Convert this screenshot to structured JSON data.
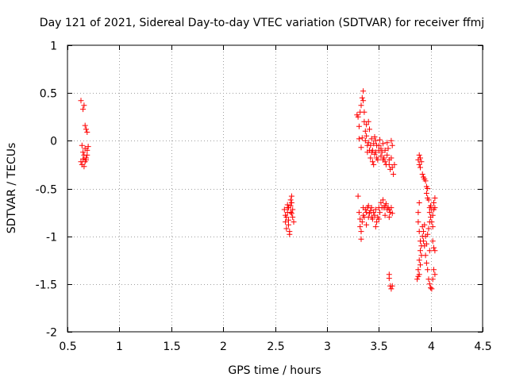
{
  "chart_data": {
    "type": "scatter",
    "title": "Day 121 of 2021, Sidereal Day-to-day VTEC variation (SDTVAR) for receiver ffmj",
    "xlabel": "GPS time / hours",
    "ylabel": "SDTVAR / TECUs",
    "xlim": [
      0.5,
      4.5
    ],
    "ylim": [
      -2,
      1
    ],
    "xticks": [
      0.5,
      1,
      1.5,
      2,
      2.5,
      3,
      3.5,
      4,
      4.5
    ],
    "yticks": [
      -2,
      -1.5,
      -1,
      -0.5,
      0,
      0.5,
      1
    ],
    "xtick_labels": [
      "0.5",
      "1",
      "1.5",
      "2",
      "2.5",
      "3",
      "3.5",
      "4",
      "4.5"
    ],
    "ytick_labels": [
      "-2",
      "-1.5",
      "-1",
      "-0.5",
      "0",
      "0.5",
      "1"
    ],
    "grid": true,
    "marker": "+",
    "color": "#ff0000",
    "series": [
      {
        "name": "SDTVAR",
        "points": [
          [
            0.63,
            0.42
          ],
          [
            0.65,
            0.33
          ],
          [
            0.66,
            0.37
          ],
          [
            0.67,
            0.16
          ],
          [
            0.68,
            0.12
          ],
          [
            0.69,
            0.09
          ],
          [
            0.64,
            -0.05
          ],
          [
            0.65,
            -0.12
          ],
          [
            0.66,
            -0.15
          ],
          [
            0.67,
            -0.08
          ],
          [
            0.68,
            -0.18
          ],
          [
            0.69,
            -0.1
          ],
          [
            0.63,
            -0.22
          ],
          [
            0.64,
            -0.25
          ],
          [
            0.66,
            -0.27
          ],
          [
            0.67,
            -0.22
          ],
          [
            0.68,
            -0.2
          ],
          [
            0.69,
            -0.15
          ],
          [
            0.7,
            -0.06
          ],
          [
            0.65,
            -0.19
          ],
          [
            2.59,
            -0.72
          ],
          [
            2.6,
            -0.78
          ],
          [
            2.6,
            -0.85
          ],
          [
            2.61,
            -0.8
          ],
          [
            2.61,
            -0.92
          ],
          [
            2.62,
            -0.7
          ],
          [
            2.62,
            -0.75
          ],
          [
            2.63,
            -0.88
          ],
          [
            2.63,
            -0.83
          ],
          [
            2.64,
            -0.95
          ],
          [
            2.64,
            -0.98
          ],
          [
            2.65,
            -0.62
          ],
          [
            2.65,
            -0.68
          ],
          [
            2.66,
            -0.58
          ],
          [
            2.66,
            -0.65
          ],
          [
            2.67,
            -0.72
          ],
          [
            2.67,
            -0.8
          ],
          [
            2.68,
            -0.85
          ],
          [
            2.62,
            -0.67
          ],
          [
            2.65,
            -0.75
          ],
          [
            2.63,
            -0.7
          ],
          [
            2.66,
            -0.76
          ],
          [
            3.29,
            0.27
          ],
          [
            3.3,
            0.25
          ],
          [
            3.31,
            0.15
          ],
          [
            3.32,
            0.3
          ],
          [
            3.33,
            0.37
          ],
          [
            3.34,
            0.45
          ],
          [
            3.35,
            0.52
          ],
          [
            3.35,
            0.42
          ],
          [
            3.36,
            0.3
          ],
          [
            3.36,
            0.2
          ],
          [
            3.37,
            0.1
          ],
          [
            3.37,
            0.0
          ],
          [
            3.38,
            0.17
          ],
          [
            3.38,
            0.05
          ],
          [
            3.39,
            -0.05
          ],
          [
            3.39,
            -0.12
          ],
          [
            3.4,
            0.2
          ],
          [
            3.4,
            -0.02
          ],
          [
            3.41,
            -0.1
          ],
          [
            3.42,
            -0.05
          ],
          [
            3.42,
            -0.18
          ],
          [
            3.43,
            -0.12
          ],
          [
            3.44,
            -0.22
          ],
          [
            3.44,
            -0.1
          ],
          [
            3.45,
            -0.25
          ],
          [
            3.45,
            -0.03
          ],
          [
            3.46,
            -0.14
          ],
          [
            3.46,
            0.04
          ],
          [
            3.47,
            0.0
          ],
          [
            3.48,
            -0.05
          ],
          [
            3.48,
            -0.18
          ],
          [
            3.49,
            -0.2
          ],
          [
            3.5,
            -0.1
          ],
          [
            3.5,
            -0.05
          ],
          [
            3.51,
            0.01
          ],
          [
            3.52,
            -0.08
          ],
          [
            3.52,
            -0.16
          ],
          [
            3.53,
            -0.12
          ],
          [
            3.54,
            -0.2
          ],
          [
            3.54,
            -0.03
          ],
          [
            3.55,
            -0.18
          ],
          [
            3.56,
            -0.1
          ],
          [
            3.56,
            -0.22
          ],
          [
            3.57,
            -0.25
          ],
          [
            3.58,
            -0.15
          ],
          [
            3.58,
            -0.02
          ],
          [
            3.59,
            -0.08
          ],
          [
            3.6,
            -0.2
          ],
          [
            3.6,
            -0.25
          ],
          [
            3.61,
            -0.3
          ],
          [
            3.62,
            -0.18
          ],
          [
            3.62,
            0.0
          ],
          [
            3.63,
            -0.05
          ],
          [
            3.63,
            -0.28
          ],
          [
            3.64,
            -0.35
          ],
          [
            3.65,
            -0.25
          ],
          [
            3.31,
            0.02
          ],
          [
            3.33,
            -0.07
          ],
          [
            3.34,
            0.03
          ],
          [
            3.41,
            0.12
          ],
          [
            3.43,
            0.02
          ],
          [
            3.47,
            -0.12
          ],
          [
            3.3,
            -0.58
          ],
          [
            3.31,
            -0.75
          ],
          [
            3.32,
            -0.82
          ],
          [
            3.32,
            -0.9
          ],
          [
            3.33,
            -0.95
          ],
          [
            3.33,
            -1.03
          ],
          [
            3.34,
            -0.85
          ],
          [
            3.35,
            -0.78
          ],
          [
            3.35,
            -0.7
          ],
          [
            3.36,
            -0.8
          ],
          [
            3.37,
            -0.72
          ],
          [
            3.38,
            -0.75
          ],
          [
            3.38,
            -0.88
          ],
          [
            3.39,
            -0.7
          ],
          [
            3.4,
            -0.8
          ],
          [
            3.4,
            -0.68
          ],
          [
            3.41,
            -0.76
          ],
          [
            3.42,
            -0.73
          ],
          [
            3.43,
            -0.8
          ],
          [
            3.43,
            -0.7
          ],
          [
            3.44,
            -0.82
          ],
          [
            3.45,
            -0.75
          ],
          [
            3.46,
            -0.78
          ],
          [
            3.47,
            -0.72
          ],
          [
            3.48,
            -0.85
          ],
          [
            3.49,
            -0.8
          ],
          [
            3.5,
            -0.7
          ],
          [
            3.51,
            -0.75
          ],
          [
            3.52,
            -0.65
          ],
          [
            3.53,
            -0.7
          ],
          [
            3.54,
            -0.62
          ],
          [
            3.55,
            -0.7
          ],
          [
            3.56,
            -0.78
          ],
          [
            3.57,
            -0.66
          ],
          [
            3.58,
            -0.72
          ],
          [
            3.59,
            -0.7
          ],
          [
            3.6,
            -0.8
          ],
          [
            3.6,
            -0.72
          ],
          [
            3.61,
            -0.75
          ],
          [
            3.62,
            -0.7
          ],
          [
            3.63,
            -0.76
          ],
          [
            3.47,
            -0.9
          ],
          [
            3.5,
            -0.82
          ],
          [
            3.56,
            -0.68
          ],
          [
            3.6,
            -1.4
          ],
          [
            3.6,
            -1.44
          ],
          [
            3.61,
            -1.52
          ],
          [
            3.62,
            -1.55
          ],
          [
            3.63,
            -1.52
          ],
          [
            3.88,
            -0.2
          ],
          [
            3.89,
            -0.25
          ],
          [
            3.89,
            -0.15
          ],
          [
            3.9,
            -0.28
          ],
          [
            3.9,
            -0.18
          ],
          [
            3.91,
            -0.22
          ],
          [
            3.92,
            -0.35
          ],
          [
            3.93,
            -0.38
          ],
          [
            3.94,
            -0.4
          ],
          [
            3.95,
            -0.42
          ],
          [
            3.96,
            -0.48
          ],
          [
            3.96,
            -0.55
          ],
          [
            3.97,
            -0.5
          ],
          [
            3.97,
            -0.6
          ],
          [
            3.98,
            -0.62
          ],
          [
            3.99,
            -0.7
          ],
          [
            3.99,
            -0.75
          ],
          [
            4.0,
            -0.68
          ],
          [
            4.0,
            -0.8
          ],
          [
            4.01,
            -0.72
          ],
          [
            4.01,
            -0.85
          ],
          [
            4.02,
            -0.78
          ],
          [
            4.02,
            -0.9
          ],
          [
            4.03,
            -0.65
          ],
          [
            4.03,
            -0.72
          ],
          [
            4.04,
            -0.6
          ],
          [
            4.04,
            -0.7
          ],
          [
            4.02,
            -1.05
          ],
          [
            4.03,
            -1.12
          ],
          [
            4.04,
            -1.15
          ],
          [
            4.03,
            -1.35
          ],
          [
            4.04,
            -1.4
          ],
          [
            4.02,
            -1.45
          ],
          [
            4.01,
            -1.55
          ],
          [
            4.0,
            -1.54
          ],
          [
            3.99,
            -1.5
          ],
          [
            3.88,
            -0.75
          ],
          [
            3.88,
            -0.85
          ],
          [
            3.89,
            -0.65
          ],
          [
            3.89,
            -0.95
          ],
          [
            3.9,
            -1.05
          ],
          [
            3.9,
            -1.15
          ],
          [
            3.89,
            -1.25
          ],
          [
            3.88,
            -1.35
          ],
          [
            3.87,
            -1.45
          ],
          [
            3.88,
            -1.42
          ],
          [
            3.89,
            -1.4
          ],
          [
            3.9,
            -1.3
          ],
          [
            3.91,
            -1.2
          ],
          [
            3.91,
            -1.1
          ],
          [
            3.92,
            -1.0
          ],
          [
            3.92,
            -0.9
          ],
          [
            3.93,
            -0.95
          ],
          [
            3.93,
            -1.05
          ],
          [
            3.94,
            -1.1
          ],
          [
            3.94,
            -0.88
          ],
          [
            3.95,
            -1.0
          ],
          [
            3.95,
            -1.2
          ],
          [
            3.96,
            -1.28
          ],
          [
            3.96,
            -1.08
          ],
          [
            3.97,
            -0.98
          ],
          [
            3.97,
            -1.35
          ],
          [
            3.98,
            -1.45
          ],
          [
            3.98,
            -0.92
          ],
          [
            3.99,
            -0.85
          ],
          [
            3.99,
            -1.15
          ]
        ]
      }
    ]
  }
}
